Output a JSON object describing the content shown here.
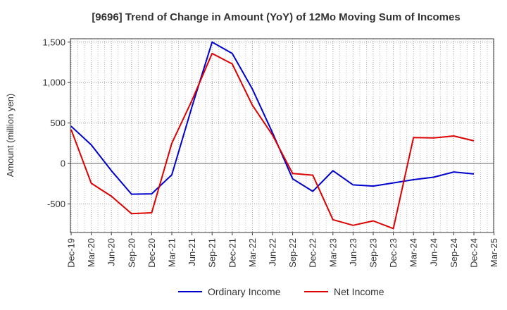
{
  "chart_data": {
    "type": "line",
    "title": "[9696]  Trend of Change in Amount (YoY) of 12Mo Moving Sum of Incomes",
    "xlabel": "",
    "ylabel": "Amount (million yen)",
    "ylim": [
      -860,
      1560
    ],
    "yticks": [
      -500,
      0,
      500,
      1000,
      1500
    ],
    "ytick_labels": [
      "-500",
      "0",
      "500",
      "1,000",
      "1,500"
    ],
    "categories": [
      "Dec-19",
      "Mar-20",
      "Jun-20",
      "Sep-20",
      "Dec-20",
      "Mar-21",
      "Jun-21",
      "Sep-21",
      "Dec-21",
      "Mar-22",
      "Jun-22",
      "Sep-22",
      "Dec-22",
      "Mar-23",
      "Jun-23",
      "Sep-23",
      "Dec-23",
      "Mar-24",
      "Jun-24",
      "Sep-24",
      "Dec-24",
      "Mar-25"
    ],
    "grid": true,
    "legend_position": "bottom",
    "series": [
      {
        "name": "Ordinary Income",
        "color": "#0000cc",
        "values": [
          460,
          230,
          -90,
          -380,
          -375,
          -140,
          700,
          1500,
          1360,
          920,
          380,
          -190,
          -345,
          -90,
          -265,
          -280,
          -240,
          -200,
          -170,
          -105,
          -130,
          null
        ]
      },
      {
        "name": "Net Income",
        "color": "#dd0000",
        "values": [
          420,
          -245,
          -405,
          -620,
          -610,
          250,
          780,
          1360,
          1230,
          720,
          350,
          -125,
          -145,
          -695,
          -765,
          -710,
          -805,
          320,
          315,
          340,
          280,
          null
        ]
      }
    ]
  }
}
